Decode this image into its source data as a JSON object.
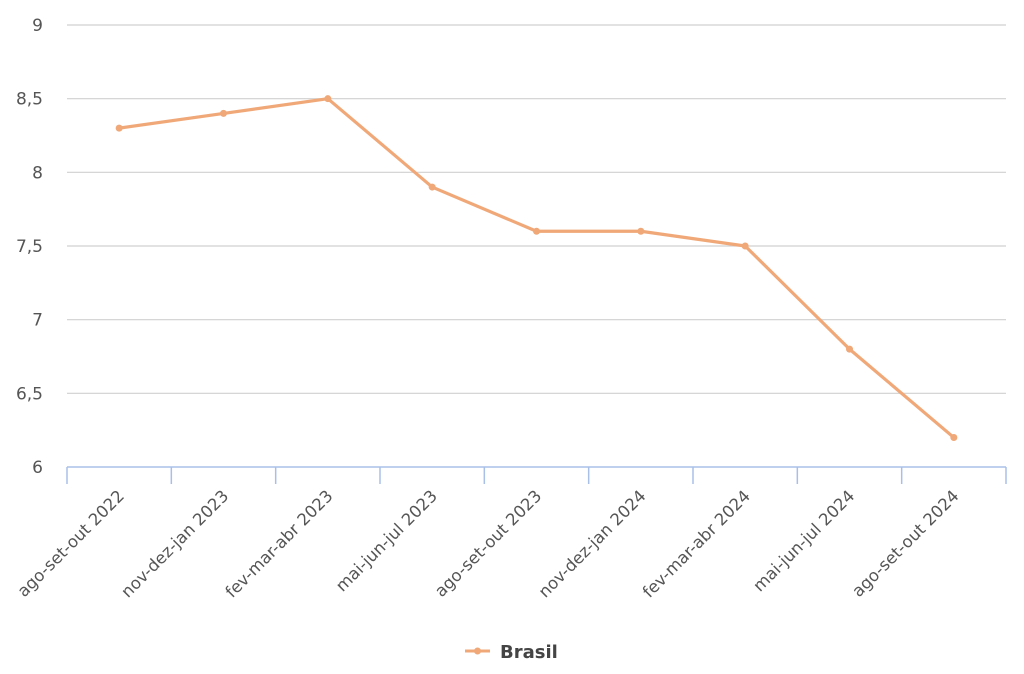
{
  "chart_data": {
    "type": "line",
    "categories": [
      "ago-set-out 2022",
      "nov-dez-jan 2023",
      "fev-mar-abr 2023",
      "mai-jun-jul 2023",
      "ago-set-out 2023",
      "nov-dez-jan 2024",
      "fev-mar-abr 2024",
      "mai-jun-jul 2024",
      "ago-set-out 2024"
    ],
    "series": [
      {
        "name": "Brasil",
        "values": [
          8.3,
          8.4,
          8.5,
          7.9,
          7.6,
          7.6,
          7.5,
          6.8,
          6.2
        ],
        "color": "#f0a878"
      }
    ],
    "yticks": [
      "6",
      "6,5",
      "7",
      "7,5",
      "8",
      "8,5",
      "9"
    ],
    "ylim": [
      6,
      9
    ],
    "grid": true,
    "gridColor": "#d0d0d0",
    "axisColor": "#a8c0e8",
    "legend_position": "bottom"
  }
}
